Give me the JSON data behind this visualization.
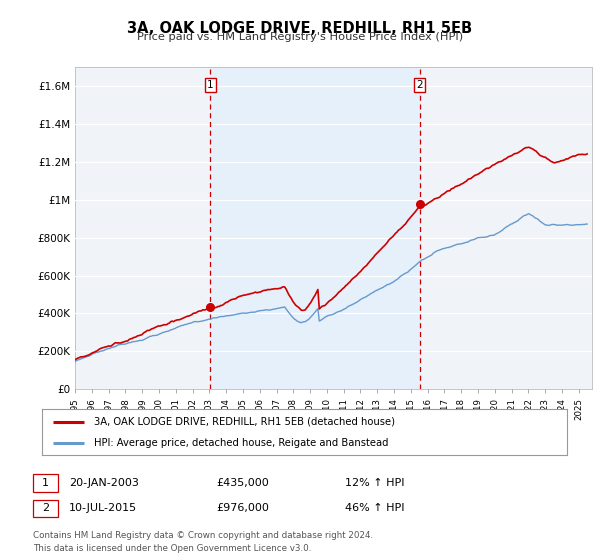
{
  "title": "3A, OAK LODGE DRIVE, REDHILL, RH1 5EB",
  "subtitle": "Price paid vs. HM Land Registry's House Price Index (HPI)",
  "ylabel_ticks": [
    "£0",
    "£200K",
    "£400K",
    "£600K",
    "£800K",
    "£1M",
    "£1.2M",
    "£1.4M",
    "£1.6M"
  ],
  "ytick_values": [
    0,
    200000,
    400000,
    600000,
    800000,
    1000000,
    1200000,
    1400000,
    1600000
  ],
  "ylim": [
    0,
    1700000
  ],
  "sale1_date": 2003.05,
  "sale1_price": 435000,
  "sale1_label": "1",
  "sale2_date": 2015.52,
  "sale2_price": 976000,
  "sale2_label": "2",
  "legend_line1": "3A, OAK LODGE DRIVE, REDHILL, RH1 5EB (detached house)",
  "legend_line2": "HPI: Average price, detached house, Reigate and Banstead",
  "table_row1": [
    "1",
    "20-JAN-2003",
    "£435,000",
    "12% ↑ HPI"
  ],
  "table_row2": [
    "2",
    "10-JUL-2015",
    "£976,000",
    "46% ↑ HPI"
  ],
  "footnote1": "Contains HM Land Registry data © Crown copyright and database right 2024.",
  "footnote2": "This data is licensed under the Open Government Licence v3.0.",
  "red_color": "#cc0000",
  "blue_color": "#6699cc",
  "blue_fill": "#ddeeff",
  "dashed_red": "#cc0000",
  "background_plot": "#f0f4f8",
  "background_fig": "#ffffff",
  "grid_color": "#ffffff",
  "xmin": 1995.0,
  "xmax": 2025.8
}
